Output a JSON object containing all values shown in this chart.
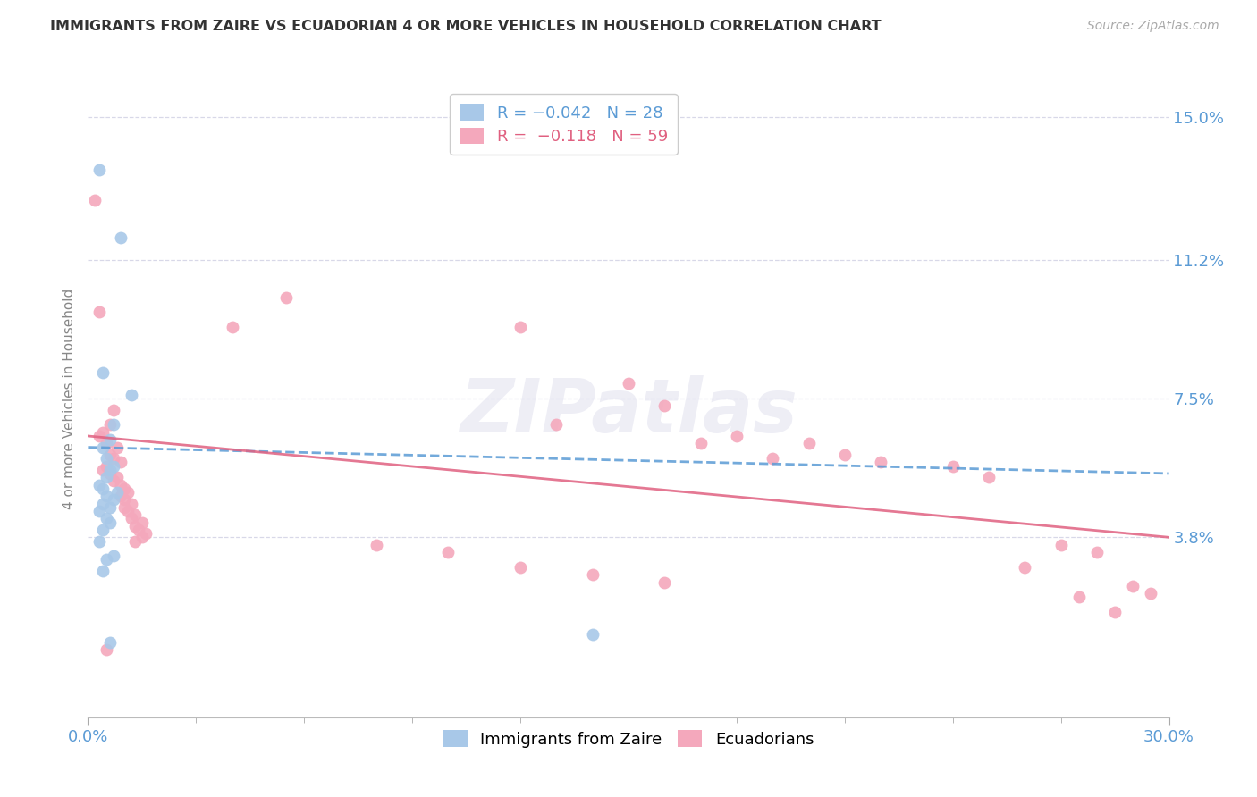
{
  "title": "IMMIGRANTS FROM ZAIRE VS ECUADORIAN 4 OR MORE VEHICLES IN HOUSEHOLD CORRELATION CHART",
  "source": "Source: ZipAtlas.com",
  "ylabel": "4 or more Vehicles in Household",
  "xlim": [
    0.0,
    0.3
  ],
  "ylim": [
    -0.01,
    0.16
  ],
  "ytick_positions": [
    0.038,
    0.075,
    0.112,
    0.15
  ],
  "ytick_labels": [
    "3.8%",
    "7.5%",
    "11.2%",
    "15.0%"
  ],
  "zaire_color": "#a8c8e8",
  "ecuadorian_color": "#f4a8bc",
  "zaire_line_color": "#5b9bd5",
  "ecuadorian_line_color": "#e06080",
  "watermark": "ZIPatlas",
  "background_color": "#ffffff",
  "grid_color": "#d8d8e8",
  "zaire_points": [
    [
      0.003,
      0.136
    ],
    [
      0.009,
      0.118
    ],
    [
      0.004,
      0.082
    ],
    [
      0.012,
      0.076
    ],
    [
      0.007,
      0.068
    ],
    [
      0.006,
      0.064
    ],
    [
      0.004,
      0.062
    ],
    [
      0.005,
      0.059
    ],
    [
      0.007,
      0.057
    ],
    [
      0.006,
      0.056
    ],
    [
      0.005,
      0.054
    ],
    [
      0.003,
      0.052
    ],
    [
      0.004,
      0.051
    ],
    [
      0.008,
      0.05
    ],
    [
      0.005,
      0.049
    ],
    [
      0.007,
      0.048
    ],
    [
      0.004,
      0.047
    ],
    [
      0.006,
      0.046
    ],
    [
      0.003,
      0.045
    ],
    [
      0.005,
      0.043
    ],
    [
      0.006,
      0.042
    ],
    [
      0.004,
      0.04
    ],
    [
      0.003,
      0.037
    ],
    [
      0.007,
      0.033
    ],
    [
      0.005,
      0.032
    ],
    [
      0.004,
      0.029
    ],
    [
      0.14,
      0.012
    ],
    [
      0.006,
      0.01
    ]
  ],
  "ecuadorian_points": [
    [
      0.002,
      0.128
    ],
    [
      0.003,
      0.098
    ],
    [
      0.055,
      0.102
    ],
    [
      0.04,
      0.094
    ],
    [
      0.007,
      0.072
    ],
    [
      0.006,
      0.068
    ],
    [
      0.004,
      0.066
    ],
    [
      0.003,
      0.065
    ],
    [
      0.005,
      0.063
    ],
    [
      0.008,
      0.062
    ],
    [
      0.006,
      0.06
    ],
    [
      0.007,
      0.059
    ],
    [
      0.009,
      0.058
    ],
    [
      0.005,
      0.057
    ],
    [
      0.004,
      0.056
    ],
    [
      0.006,
      0.055
    ],
    [
      0.008,
      0.054
    ],
    [
      0.007,
      0.053
    ],
    [
      0.009,
      0.052
    ],
    [
      0.01,
      0.051
    ],
    [
      0.011,
      0.05
    ],
    [
      0.009,
      0.049
    ],
    [
      0.01,
      0.048
    ],
    [
      0.012,
      0.047
    ],
    [
      0.01,
      0.046
    ],
    [
      0.011,
      0.045
    ],
    [
      0.013,
      0.044
    ],
    [
      0.012,
      0.043
    ],
    [
      0.015,
      0.042
    ],
    [
      0.013,
      0.041
    ],
    [
      0.014,
      0.04
    ],
    [
      0.016,
      0.039
    ],
    [
      0.015,
      0.038
    ],
    [
      0.013,
      0.037
    ],
    [
      0.12,
      0.094
    ],
    [
      0.15,
      0.079
    ],
    [
      0.16,
      0.073
    ],
    [
      0.13,
      0.068
    ],
    [
      0.18,
      0.065
    ],
    [
      0.2,
      0.063
    ],
    [
      0.21,
      0.06
    ],
    [
      0.19,
      0.059
    ],
    [
      0.17,
      0.063
    ],
    [
      0.24,
      0.057
    ],
    [
      0.22,
      0.058
    ],
    [
      0.25,
      0.054
    ],
    [
      0.08,
      0.036
    ],
    [
      0.1,
      0.034
    ],
    [
      0.12,
      0.03
    ],
    [
      0.14,
      0.028
    ],
    [
      0.16,
      0.026
    ],
    [
      0.27,
      0.036
    ],
    [
      0.28,
      0.034
    ],
    [
      0.26,
      0.03
    ],
    [
      0.29,
      0.025
    ],
    [
      0.295,
      0.023
    ],
    [
      0.005,
      0.008
    ],
    [
      0.275,
      0.022
    ],
    [
      0.285,
      0.018
    ]
  ]
}
